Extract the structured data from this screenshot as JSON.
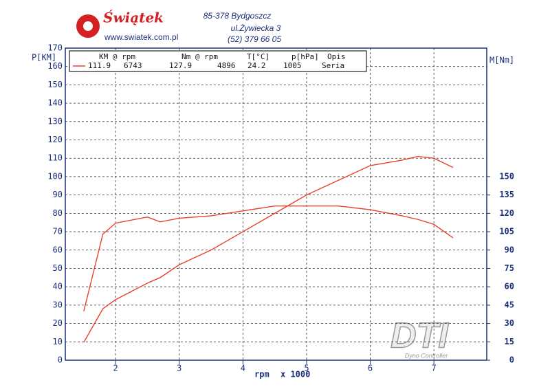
{
  "header": {
    "brand": "Świątek",
    "website": "www.swiatek.com.pl",
    "address_line1": "85-378 Bydgoszcz",
    "address_line2": "ul.Żywiecka 3",
    "phone": "(52) 379 66 05"
  },
  "watermark": {
    "logo": "DTI",
    "caption": "Dyno Controller"
  },
  "legend_table": {
    "headers": [
      "KM @ rpm",
      "Nm @ rpm",
      "T[°C]",
      "p[hPa]",
      "Opis"
    ],
    "row": [
      "111.9",
      "6743",
      "127.9",
      "4896",
      "24.2",
      "1005",
      "Seria"
    ]
  },
  "chart_data": {
    "type": "line",
    "y_label": "P[KM]",
    "y2_label": "M[Nm]",
    "x_label": "rpm",
    "x_unit": "x 1000",
    "x": [
      1.5,
      1.8,
      2,
      2.5,
      2.7,
      3,
      3.5,
      4,
      4.5,
      5,
      5.5,
      6,
      6.5,
      6.75,
      7,
      7.3
    ],
    "series": [
      {
        "name": "KM",
        "color": "#e8402a",
        "values": [
          9.7,
          28,
          33,
          42,
          45,
          52,
          60,
          70,
          80,
          90,
          98,
          106,
          109,
          111,
          110,
          105
        ]
      },
      {
        "name": "Nm",
        "color": "#e8402a",
        "axis": "y2",
        "values": [
          40,
          103,
          112,
          117,
          113,
          116,
          118,
          122,
          126,
          126,
          126,
          123,
          118,
          115,
          111,
          100
        ]
      }
    ],
    "xlim": [
      1.21,
      7.83
    ],
    "xticks": [
      2,
      3,
      4,
      5,
      6,
      7
    ],
    "ylim": [
      0,
      170
    ],
    "yticks": [
      0,
      10,
      20,
      30,
      40,
      50,
      60,
      70,
      80,
      90,
      100,
      110,
      120,
      130,
      140,
      150,
      160,
      170
    ],
    "y2lim": [
      0,
      255
    ],
    "y2ticks": [
      0,
      15,
      30,
      45,
      60,
      75,
      90,
      105,
      120,
      135,
      150
    ],
    "grid": true
  }
}
